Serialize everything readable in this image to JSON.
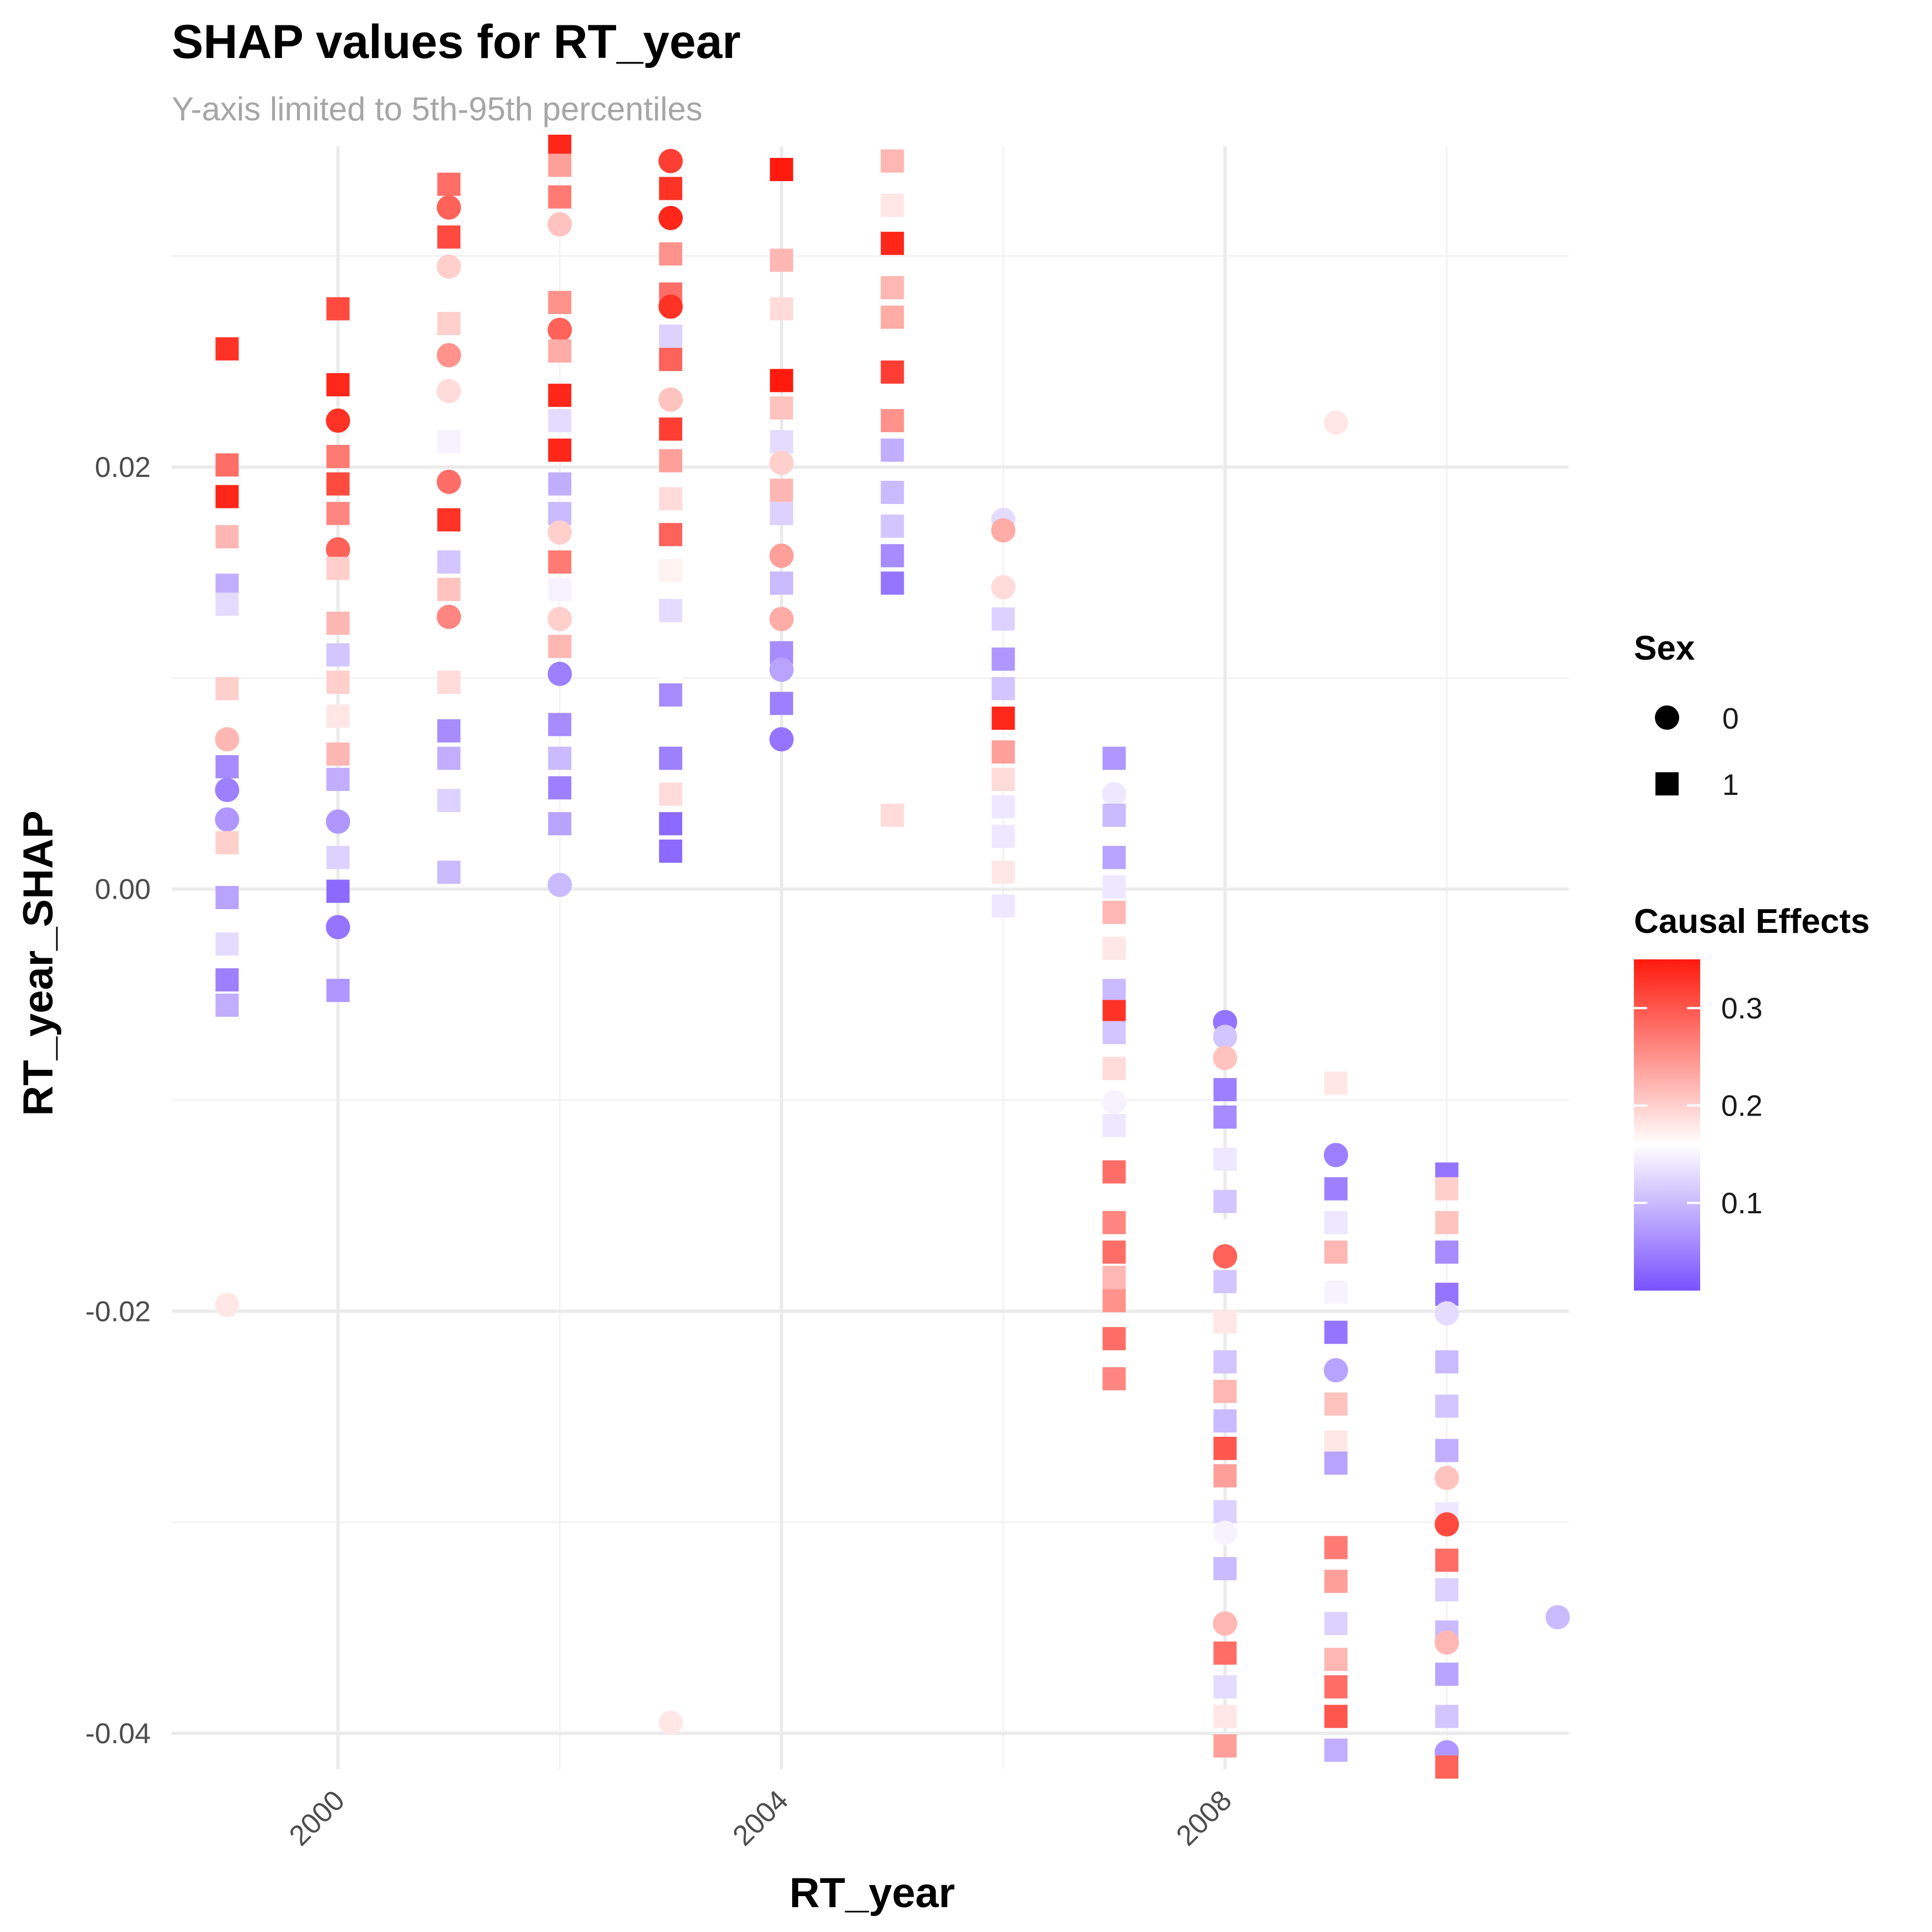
{
  "chart_data": {
    "type": "scatter",
    "title": "SHAP values for RT_year",
    "subtitle": "Y-axis limited to 5th-95th percentiles",
    "xlabel": "RT_year",
    "ylabel": "RT_year_SHAP",
    "xlim": [
      1998.5,
      2011.1
    ],
    "ylim": [
      -0.0417,
      0.0352
    ],
    "x_ticks": [
      2000,
      2004,
      2008
    ],
    "y_ticks": [
      -0.04,
      -0.02,
      0.0,
      0.02
    ],
    "x_tick_labels": [
      "2000",
      "2004",
      "2008"
    ],
    "y_tick_labels": [
      "-0.04",
      "-0.02",
      "0.00",
      "0.02"
    ],
    "grid": true,
    "legend_position": "right",
    "shape_legend": {
      "title": "Sex",
      "items": [
        {
          "label": "0",
          "shape": "circle"
        },
        {
          "label": "1",
          "shape": "square"
        }
      ]
    },
    "color_legend": {
      "title": "Causal Effects",
      "low": 0.01,
      "mid": 0.16,
      "high": 0.35,
      "low_color": "#7a52ff",
      "mid_color": "#ffffff",
      "high_color": "#ff1a0d",
      "breaks": [
        0.1,
        0.2,
        0.3
      ],
      "break_labels": [
        "0.1",
        "0.2",
        "0.3"
      ]
    },
    "points": [
      [
        1999,
        0.0256,
        1,
        0.33
      ],
      [
        1999,
        0.0201,
        1,
        0.28
      ],
      [
        1999,
        0.0186,
        1,
        0.34
      ],
      [
        1999,
        0.0167,
        1,
        0.22
      ],
      [
        1999,
        0.0144,
        1,
        0.09
      ],
      [
        1999,
        0.0135,
        1,
        0.13
      ],
      [
        1999,
        0.0095,
        1,
        0.2
      ],
      [
        1999,
        0.0071,
        0,
        0.22
      ],
      [
        1999,
        0.0058,
        1,
        0.06
      ],
      [
        1999,
        0.0047,
        0,
        0.05
      ],
      [
        1999,
        0.0033,
        0,
        0.07
      ],
      [
        1999,
        0.0022,
        1,
        0.2
      ],
      [
        1999,
        -0.0004,
        1,
        0.08
      ],
      [
        1999,
        -0.0026,
        1,
        0.13
      ],
      [
        1999,
        -0.0043,
        1,
        0.05
      ],
      [
        1999,
        -0.0055,
        1,
        0.09
      ],
      [
        1999,
        -0.0197,
        0,
        0.18
      ],
      [
        2000,
        0.0275,
        1,
        0.31
      ],
      [
        2000,
        0.0239,
        1,
        0.34
      ],
      [
        2000,
        0.0222,
        0,
        0.33
      ],
      [
        2000,
        0.0205,
        1,
        0.27
      ],
      [
        2000,
        0.0192,
        1,
        0.31
      ],
      [
        2000,
        0.0178,
        1,
        0.26
      ],
      [
        2000,
        0.0161,
        0,
        0.29
      ],
      [
        2000,
        0.0152,
        1,
        0.2
      ],
      [
        2000,
        0.0126,
        1,
        0.22
      ],
      [
        2000,
        0.0111,
        1,
        0.11
      ],
      [
        2000,
        0.0098,
        1,
        0.2
      ],
      [
        2000,
        0.0082,
        1,
        0.18
      ],
      [
        2000,
        0.0064,
        1,
        0.22
      ],
      [
        2000,
        0.0052,
        1,
        0.09
      ],
      [
        2000,
        0.0032,
        0,
        0.07
      ],
      [
        2000,
        0.0015,
        1,
        0.12
      ],
      [
        2000,
        -0.0001,
        1,
        0.03
      ],
      [
        2000,
        -0.0018,
        0,
        0.04
      ],
      [
        2000,
        -0.0048,
        1,
        0.07
      ],
      [
        2001,
        0.0334,
        1,
        0.28
      ],
      [
        2001,
        0.0323,
        0,
        0.29
      ],
      [
        2001,
        0.0309,
        1,
        0.31
      ],
      [
        2001,
        0.0295,
        0,
        0.2
      ],
      [
        2001,
        0.0268,
        1,
        0.2
      ],
      [
        2001,
        0.0253,
        0,
        0.25
      ],
      [
        2001,
        0.0236,
        0,
        0.19
      ],
      [
        2001,
        0.0212,
        1,
        0.15
      ],
      [
        2001,
        0.0193,
        0,
        0.28
      ],
      [
        2001,
        0.0175,
        1,
        0.33
      ],
      [
        2001,
        0.0155,
        1,
        0.11
      ],
      [
        2001,
        0.0142,
        1,
        0.21
      ],
      [
        2001,
        0.0129,
        0,
        0.26
      ],
      [
        2001,
        0.0098,
        1,
        0.19
      ],
      [
        2001,
        0.0075,
        1,
        0.06
      ],
      [
        2001,
        0.0062,
        1,
        0.09
      ],
      [
        2001,
        0.0042,
        1,
        0.12
      ],
      [
        2001,
        0.0008,
        1,
        0.1
      ],
      [
        2002,
        0.0352,
        1,
        0.34
      ],
      [
        2002,
        0.0343,
        1,
        0.24
      ],
      [
        2002,
        0.0328,
        1,
        0.27
      ],
      [
        2002,
        0.0315,
        0,
        0.21
      ],
      [
        2002,
        0.0278,
        1,
        0.25
      ],
      [
        2002,
        0.0265,
        0,
        0.29
      ],
      [
        2002,
        0.0255,
        1,
        0.23
      ],
      [
        2002,
        0.0234,
        1,
        0.34
      ],
      [
        2002,
        0.0222,
        1,
        0.13
      ],
      [
        2002,
        0.0208,
        1,
        0.34
      ],
      [
        2002,
        0.0192,
        1,
        0.09
      ],
      [
        2002,
        0.0178,
        1,
        0.1
      ],
      [
        2002,
        0.0169,
        0,
        0.2
      ],
      [
        2002,
        0.0155,
        1,
        0.27
      ],
      [
        2002,
        0.0142,
        1,
        0.15
      ],
      [
        2002,
        0.0128,
        0,
        0.2
      ],
      [
        2002,
        0.0115,
        1,
        0.22
      ],
      [
        2002,
        0.0102,
        0,
        0.05
      ],
      [
        2002,
        0.0078,
        1,
        0.06
      ],
      [
        2002,
        0.0062,
        1,
        0.1
      ],
      [
        2002,
        0.0048,
        1,
        0.05
      ],
      [
        2002,
        0.0031,
        1,
        0.08
      ],
      [
        2002,
        0.0002,
        0,
        0.1
      ],
      [
        2003,
        0.0345,
        0,
        0.32
      ],
      [
        2003,
        0.0332,
        1,
        0.33
      ],
      [
        2003,
        0.0318,
        0,
        0.34
      ],
      [
        2003,
        0.0301,
        1,
        0.25
      ],
      [
        2003,
        0.0282,
        1,
        0.28
      ],
      [
        2003,
        0.0276,
        0,
        0.33
      ],
      [
        2003,
        0.0262,
        1,
        0.12
      ],
      [
        2003,
        0.0251,
        1,
        0.29
      ],
      [
        2003,
        0.0232,
        0,
        0.21
      ],
      [
        2003,
        0.0218,
        1,
        0.32
      ],
      [
        2003,
        0.0203,
        1,
        0.24
      ],
      [
        2003,
        0.0185,
        1,
        0.19
      ],
      [
        2003,
        0.0168,
        1,
        0.29
      ],
      [
        2003,
        0.0151,
        1,
        0.17
      ],
      [
        2003,
        0.0132,
        1,
        0.13
      ],
      [
        2003,
        0.0101,
        0,
        0.16
      ],
      [
        2003,
        0.0092,
        1,
        0.06
      ],
      [
        2003,
        0.0062,
        1,
        0.05
      ],
      [
        2003,
        0.0045,
        1,
        0.19
      ],
      [
        2003,
        0.0031,
        1,
        0.03
      ],
      [
        2003,
        0.0018,
        1,
        0.03
      ],
      [
        2003,
        -0.0395,
        0,
        0.18
      ],
      [
        2004,
        0.0341,
        1,
        0.35
      ],
      [
        2004,
        0.0298,
        1,
        0.22
      ],
      [
        2004,
        0.0275,
        1,
        0.19
      ],
      [
        2004,
        0.0241,
        1,
        0.35
      ],
      [
        2004,
        0.0228,
        1,
        0.21
      ],
      [
        2004,
        0.0212,
        1,
        0.13
      ],
      [
        2004,
        0.0202,
        0,
        0.2
      ],
      [
        2004,
        0.0189,
        1,
        0.22
      ],
      [
        2004,
        0.0178,
        1,
        0.12
      ],
      [
        2004,
        0.0158,
        0,
        0.24
      ],
      [
        2004,
        0.0145,
        1,
        0.1
      ],
      [
        2004,
        0.0128,
        0,
        0.23
      ],
      [
        2004,
        0.0112,
        1,
        0.06
      ],
      [
        2004,
        0.0104,
        0,
        0.08
      ],
      [
        2004,
        0.0088,
        1,
        0.05
      ],
      [
        2004,
        0.0071,
        0,
        0.04
      ],
      [
        2005,
        0.0345,
        1,
        0.22
      ],
      [
        2005,
        0.0324,
        1,
        0.18
      ],
      [
        2005,
        0.0306,
        1,
        0.34
      ],
      [
        2005,
        0.0285,
        1,
        0.22
      ],
      [
        2005,
        0.0271,
        1,
        0.23
      ],
      [
        2005,
        0.0245,
        1,
        0.32
      ],
      [
        2005,
        0.0222,
        1,
        0.25
      ],
      [
        2005,
        0.0208,
        1,
        0.09
      ],
      [
        2005,
        0.0188,
        1,
        0.1
      ],
      [
        2005,
        0.0172,
        1,
        0.11
      ],
      [
        2005,
        0.0158,
        1,
        0.06
      ],
      [
        2005,
        0.0145,
        1,
        0.04
      ],
      [
        2005,
        0.0035,
        1,
        0.19
      ],
      [
        2006,
        0.0175,
        0,
        0.13
      ],
      [
        2006,
        0.017,
        0,
        0.23
      ],
      [
        2006,
        0.0143,
        0,
        0.19
      ],
      [
        2006,
        0.0128,
        1,
        0.12
      ],
      [
        2006,
        0.0109,
        1,
        0.07
      ],
      [
        2006,
        0.0095,
        1,
        0.11
      ],
      [
        2006,
        0.0081,
        1,
        0.34
      ],
      [
        2006,
        0.0065,
        1,
        0.24
      ],
      [
        2006,
        0.0052,
        1,
        0.19
      ],
      [
        2006,
        0.0039,
        1,
        0.14
      ],
      [
        2006,
        0.0025,
        1,
        0.14
      ],
      [
        2006,
        0.0008,
        1,
        0.18
      ],
      [
        2006,
        -0.0008,
        1,
        0.14
      ],
      [
        2007,
        0.0075,
        1,
        0.16
      ],
      [
        2007,
        0.0062,
        1,
        0.07
      ],
      [
        2007,
        0.0045,
        0,
        0.14
      ],
      [
        2007,
        0.0035,
        1,
        0.1
      ],
      [
        2007,
        0.0015,
        1,
        0.08
      ],
      [
        2007,
        0.0001,
        1,
        0.14
      ],
      [
        2007,
        -0.0011,
        1,
        0.22
      ],
      [
        2007,
        -0.0028,
        1,
        0.18
      ],
      [
        2007,
        -0.0048,
        1,
        0.1
      ],
      [
        2007,
        -0.0058,
        1,
        0.33
      ],
      [
        2007,
        -0.0068,
        1,
        0.11
      ],
      [
        2007,
        -0.0085,
        1,
        0.19
      ],
      [
        2007,
        -0.0101,
        0,
        0.15
      ],
      [
        2007,
        -0.0112,
        1,
        0.14
      ],
      [
        2007,
        -0.0134,
        1,
        0.28
      ],
      [
        2007,
        -0.0158,
        1,
        0.26
      ],
      [
        2007,
        -0.0172,
        1,
        0.28
      ],
      [
        2007,
        -0.0184,
        1,
        0.22
      ],
      [
        2007,
        -0.0195,
        1,
        0.25
      ],
      [
        2007,
        -0.0213,
        1,
        0.28
      ],
      [
        2007,
        -0.0232,
        1,
        0.26
      ],
      [
        2008,
        -0.0063,
        0,
        0.04
      ],
      [
        2008,
        -0.007,
        0,
        0.11
      ],
      [
        2008,
        -0.008,
        0,
        0.21
      ],
      [
        2008,
        -0.0095,
        1,
        0.05
      ],
      [
        2008,
        -0.0108,
        1,
        0.06
      ],
      [
        2008,
        -0.0128,
        1,
        0.14
      ],
      [
        2008,
        -0.0148,
        1,
        0.11
      ],
      [
        2008,
        -0.0162,
        1,
        0.16
      ],
      [
        2008,
        -0.0174,
        0,
        0.29
      ],
      [
        2008,
        -0.0186,
        1,
        0.11
      ],
      [
        2008,
        -0.0205,
        1,
        0.18
      ],
      [
        2008,
        -0.0224,
        1,
        0.11
      ],
      [
        2008,
        -0.0238,
        1,
        0.22
      ],
      [
        2008,
        -0.0252,
        1,
        0.1
      ],
      [
        2008,
        -0.0265,
        1,
        0.3
      ],
      [
        2008,
        -0.0278,
        1,
        0.24
      ],
      [
        2008,
        -0.0295,
        1,
        0.12
      ],
      [
        2008,
        -0.0305,
        0,
        0.15
      ],
      [
        2008,
        -0.0322,
        1,
        0.1
      ],
      [
        2008,
        -0.0348,
        0,
        0.22
      ],
      [
        2008,
        -0.0362,
        1,
        0.28
      ],
      [
        2008,
        -0.0378,
        1,
        0.13
      ],
      [
        2008,
        -0.0392,
        1,
        0.18
      ],
      [
        2008,
        -0.0406,
        1,
        0.24
      ],
      [
        2009,
        0.0221,
        0,
        0.18
      ],
      [
        2009,
        -0.0092,
        1,
        0.18
      ],
      [
        2009,
        -0.0106,
        1,
        0.16
      ],
      [
        2009,
        -0.0126,
        0,
        0.05
      ],
      [
        2009,
        -0.0142,
        1,
        0.05
      ],
      [
        2009,
        -0.0158,
        1,
        0.14
      ],
      [
        2009,
        -0.0172,
        1,
        0.22
      ],
      [
        2009,
        -0.0191,
        1,
        0.15
      ],
      [
        2009,
        -0.021,
        1,
        0.04
      ],
      [
        2009,
        -0.0228,
        0,
        0.08
      ],
      [
        2009,
        -0.0244,
        1,
        0.21
      ],
      [
        2009,
        -0.0262,
        1,
        0.18
      ],
      [
        2009,
        -0.0272,
        1,
        0.08
      ],
      [
        2009,
        -0.029,
        1,
        0.16
      ],
      [
        2009,
        -0.0312,
        1,
        0.27
      ],
      [
        2009,
        -0.0328,
        1,
        0.24
      ],
      [
        2009,
        -0.0348,
        1,
        0.12
      ],
      [
        2009,
        -0.0365,
        1,
        0.22
      ],
      [
        2009,
        -0.0378,
        1,
        0.28
      ],
      [
        2009,
        -0.0392,
        1,
        0.3
      ],
      [
        2009,
        -0.0408,
        1,
        0.09
      ],
      [
        2010,
        -0.0135,
        1,
        0.04
      ],
      [
        2010,
        -0.0142,
        1,
        0.2
      ],
      [
        2010,
        -0.0158,
        1,
        0.21
      ],
      [
        2010,
        -0.0172,
        1,
        0.06
      ],
      [
        2010,
        -0.0192,
        1,
        0.04
      ],
      [
        2010,
        -0.0201,
        0,
        0.13
      ],
      [
        2010,
        -0.0224,
        1,
        0.1
      ],
      [
        2010,
        -0.0245,
        1,
        0.11
      ],
      [
        2010,
        -0.0266,
        1,
        0.09
      ],
      [
        2010,
        -0.0279,
        0,
        0.21
      ],
      [
        2010,
        -0.0296,
        1,
        0.14
      ],
      [
        2010,
        -0.0301,
        0,
        0.31
      ],
      [
        2010,
        -0.0318,
        1,
        0.28
      ],
      [
        2010,
        -0.0332,
        1,
        0.12
      ],
      [
        2010,
        -0.0352,
        1,
        0.1
      ],
      [
        2010,
        -0.0357,
        0,
        0.22
      ],
      [
        2010,
        -0.0372,
        1,
        0.08
      ],
      [
        2010,
        -0.0392,
        1,
        0.11
      ],
      [
        2010,
        -0.0409,
        0,
        0.07
      ],
      [
        2010,
        -0.0416,
        1,
        0.29
      ],
      [
        2011,
        -0.0345,
        0,
        0.1
      ]
    ]
  }
}
